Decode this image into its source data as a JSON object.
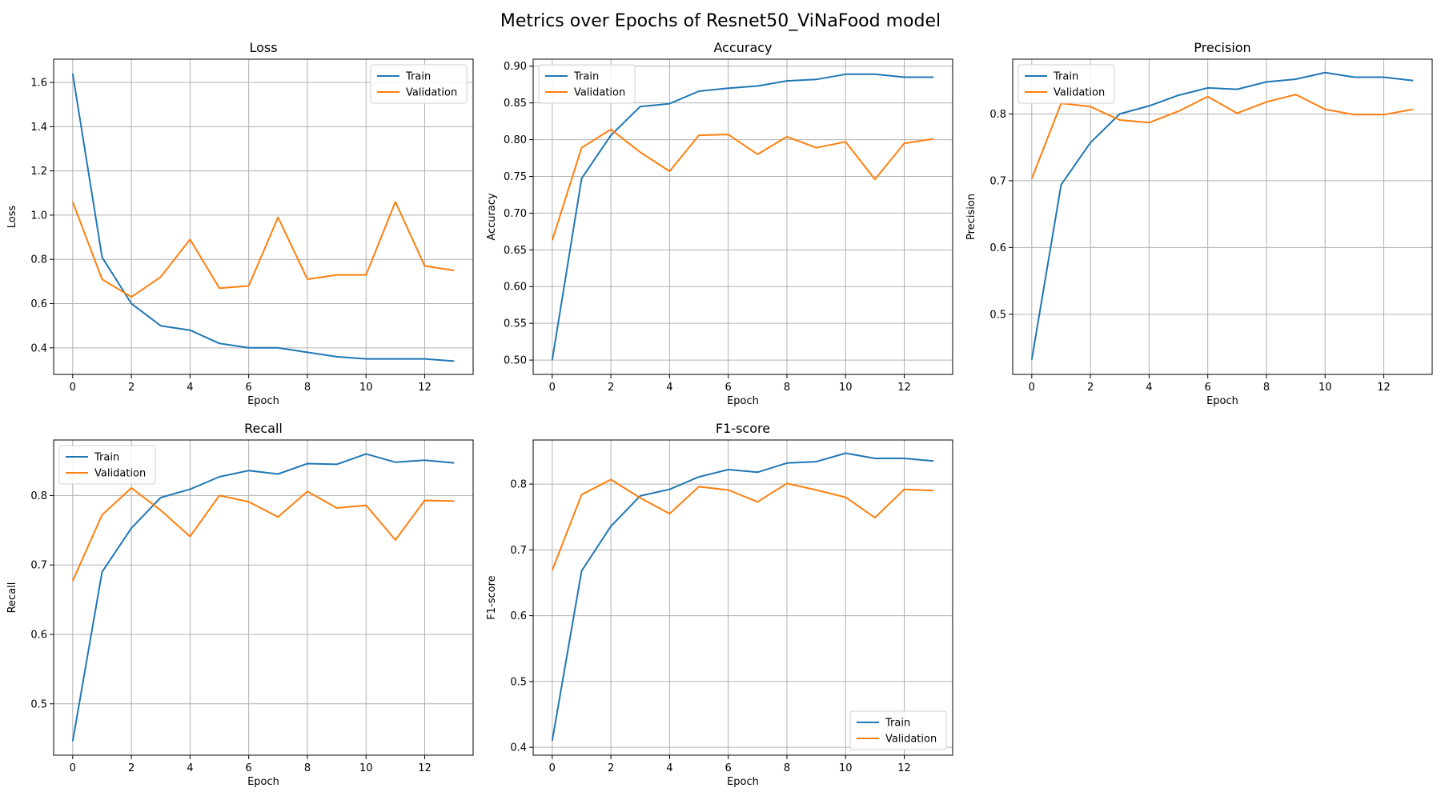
{
  "figure": {
    "title": "Metrics over Epochs of Resnet50_ViNaFood model"
  },
  "colors": {
    "train": "#1f77b4",
    "validation": "#ff7f0e",
    "grid": "#b0b0b0"
  },
  "chart_data": [
    {
      "type": "line",
      "title": "Loss",
      "xlabel": "Epoch",
      "ylabel": "Loss",
      "x": [
        0,
        1,
        2,
        3,
        4,
        5,
        6,
        7,
        8,
        9,
        10,
        11,
        12,
        13
      ],
      "xticks": [
        0,
        2,
        4,
        6,
        8,
        10,
        12
      ],
      "yticks": [
        0.4,
        0.6,
        0.8,
        1.0,
        1.2,
        1.4,
        1.6
      ],
      "ytick_decimals": 1,
      "ylim": [
        0.28,
        1.705
      ],
      "xlim": [
        -0.65,
        13.65
      ],
      "grid": true,
      "legend": "upper right",
      "series": [
        {
          "name": "Train",
          "values": [
            1.64,
            0.81,
            0.6,
            0.5,
            0.48,
            0.42,
            0.4,
            0.4,
            0.38,
            0.36,
            0.35,
            0.35,
            0.35,
            0.34
          ]
        },
        {
          "name": "Validation",
          "values": [
            1.06,
            0.71,
            0.63,
            0.72,
            0.89,
            0.67,
            0.68,
            0.99,
            0.71,
            0.73,
            0.73,
            1.06,
            0.77,
            0.75
          ]
        }
      ]
    },
    {
      "type": "line",
      "title": "Accuracy",
      "xlabel": "Epoch",
      "ylabel": "Accuracy",
      "x": [
        0,
        1,
        2,
        3,
        4,
        5,
        6,
        7,
        8,
        9,
        10,
        11,
        12,
        13
      ],
      "xticks": [
        0,
        2,
        4,
        6,
        8,
        10,
        12
      ],
      "yticks": [
        0.5,
        0.55,
        0.6,
        0.65,
        0.7,
        0.75,
        0.8,
        0.85,
        0.9
      ],
      "ytick_decimals": 2,
      "ylim": [
        0.4805,
        0.9095
      ],
      "xlim": [
        -0.65,
        13.65
      ],
      "grid": true,
      "legend": "upper left",
      "series": [
        {
          "name": "Train",
          "values": [
            0.5,
            0.747,
            0.806,
            0.845,
            0.849,
            0.866,
            0.87,
            0.873,
            0.88,
            0.882,
            0.889,
            0.889,
            0.885,
            0.885
          ]
        },
        {
          "name": "Validation",
          "values": [
            0.663,
            0.789,
            0.814,
            0.783,
            0.757,
            0.806,
            0.807,
            0.78,
            0.804,
            0.789,
            0.797,
            0.746,
            0.795,
            0.801
          ]
        }
      ]
    },
    {
      "type": "line",
      "title": "Precision",
      "xlabel": "Epoch",
      "ylabel": "Precision",
      "x": [
        0,
        1,
        2,
        3,
        4,
        5,
        6,
        7,
        8,
        9,
        10,
        11,
        12,
        13
      ],
      "xticks": [
        0,
        2,
        4,
        6,
        8,
        10,
        12
      ],
      "yticks": [
        0.5,
        0.6,
        0.7,
        0.8
      ],
      "ytick_decimals": 1,
      "ylim": [
        0.41,
        0.882
      ],
      "xlim": [
        -0.65,
        13.65
      ],
      "grid": true,
      "legend": "upper left",
      "series": [
        {
          "name": "Train",
          "values": [
            0.432,
            0.694,
            0.757,
            0.8,
            0.812,
            0.828,
            0.839,
            0.837,
            0.848,
            0.852,
            0.862,
            0.855,
            0.855,
            0.85
          ]
        },
        {
          "name": "Validation",
          "values": [
            0.703,
            0.816,
            0.811,
            0.791,
            0.787,
            0.804,
            0.826,
            0.801,
            0.818,
            0.829,
            0.807,
            0.799,
            0.799,
            0.807
          ]
        }
      ]
    },
    {
      "type": "line",
      "title": "Recall",
      "xlabel": "Epoch",
      "ylabel": "Recall",
      "x": [
        0,
        1,
        2,
        3,
        4,
        5,
        6,
        7,
        8,
        9,
        10,
        11,
        12,
        13
      ],
      "xticks": [
        0,
        2,
        4,
        6,
        8,
        10,
        12
      ],
      "yticks": [
        0.5,
        0.6,
        0.7,
        0.8
      ],
      "ytick_decimals": 1,
      "ylim": [
        0.426,
        0.88
      ],
      "xlim": [
        -0.65,
        13.65
      ],
      "grid": true,
      "legend": "upper left",
      "series": [
        {
          "name": "Train",
          "values": [
            0.446,
            0.69,
            0.753,
            0.797,
            0.809,
            0.827,
            0.836,
            0.831,
            0.846,
            0.845,
            0.86,
            0.848,
            0.851,
            0.847
          ]
        },
        {
          "name": "Validation",
          "values": [
            0.677,
            0.772,
            0.811,
            0.779,
            0.741,
            0.8,
            0.791,
            0.769,
            0.806,
            0.782,
            0.786,
            0.736,
            0.793,
            0.792
          ]
        }
      ]
    },
    {
      "type": "line",
      "title": "F1-score",
      "xlabel": "Epoch",
      "ylabel": "F1-score",
      "x": [
        0,
        1,
        2,
        3,
        4,
        5,
        6,
        7,
        8,
        9,
        10,
        11,
        12,
        13
      ],
      "xticks": [
        0,
        2,
        4,
        6,
        8,
        10,
        12
      ],
      "yticks": [
        0.4,
        0.5,
        0.6,
        0.7,
        0.8
      ],
      "ytick_decimals": 1,
      "ylim": [
        0.388,
        0.867
      ],
      "xlim": [
        -0.65,
        13.65
      ],
      "grid": true,
      "legend": "lower right",
      "series": [
        {
          "name": "Train",
          "values": [
            0.41,
            0.668,
            0.736,
            0.782,
            0.792,
            0.811,
            0.822,
            0.818,
            0.832,
            0.834,
            0.847,
            0.839,
            0.839,
            0.835
          ]
        },
        {
          "name": "Validation",
          "values": [
            0.669,
            0.784,
            0.807,
            0.779,
            0.755,
            0.796,
            0.791,
            0.773,
            0.801,
            0.791,
            0.78,
            0.749,
            0.792,
            0.79
          ]
        }
      ]
    }
  ]
}
